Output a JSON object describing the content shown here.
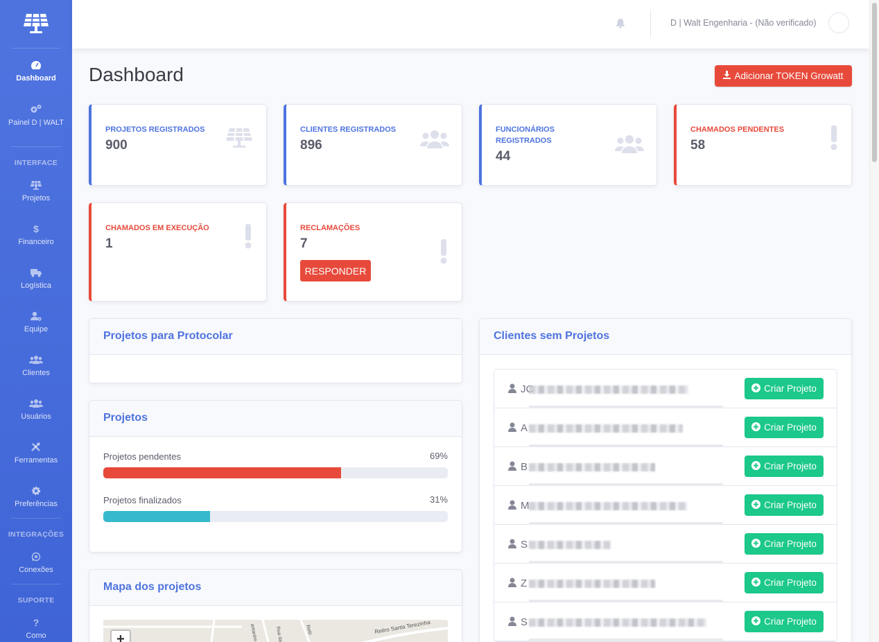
{
  "sidebar": {
    "items": [
      {
        "label": "Dashboard",
        "icon": "tachometer-icon"
      },
      {
        "label": "Painel D | WALT",
        "icon": "cogs-icon"
      },
      {
        "label": "Projetos",
        "icon": "solar-panel-icon"
      },
      {
        "label": "Financeiro",
        "icon": "dollar-icon"
      },
      {
        "label": "Logística",
        "icon": "truck-icon"
      },
      {
        "label": "Equipe",
        "icon": "user-cog-icon"
      },
      {
        "label": "Clientes",
        "icon": "users-icon"
      },
      {
        "label": "Usuários",
        "icon": "users-icon"
      },
      {
        "label": "Ferramentas",
        "icon": "tools-icon"
      },
      {
        "label": "Preferências",
        "icon": "gear-icon"
      },
      {
        "label": "Conexões",
        "icon": "whatsapp-icon"
      },
      {
        "label": "Como",
        "icon": "question-icon"
      }
    ],
    "headings": {
      "interface": "INTERFACE",
      "integracoes": "INTEGRAÇÕES",
      "suporte": "SUPORTE"
    }
  },
  "topbar": {
    "user_name": "D | Walt Engenharia - (Não verificado)"
  },
  "page": {
    "title": "Dashboard",
    "token_button": "Adicionar TOKEN Growatt"
  },
  "stats": [
    {
      "label": "PROJETOS REGISTRADOS",
      "value": "900"
    },
    {
      "label": "CLIENTES REGISTRADOS",
      "value": "896"
    },
    {
      "label": "FUNCIONÁRIOS REGISTRADOS",
      "value": "44"
    },
    {
      "label": "CHAMADOS PENDENTES",
      "value": "58"
    },
    {
      "label": "CHAMADOS EM EXECUÇÃO",
      "value": "1"
    },
    {
      "label": "RECLAMAÇÕES",
      "value": "7",
      "button": "RESPONDER"
    }
  ],
  "panels": {
    "protocolar_title": "Projetos para Protocolar",
    "projetos_title": "Projetos",
    "mapa_title": "Mapa dos projetos",
    "clientes_title": "Clientes sem Projetos"
  },
  "progress": [
    {
      "label": "Projetos pendentes",
      "percent_text": "69%",
      "percent": 69,
      "color": "#e74a3b"
    },
    {
      "label": "Projetos finalizados",
      "percent_text": "31%",
      "percent": 31,
      "color": "#36b9cc"
    }
  ],
  "map": {
    "zoom_in": "+",
    "street_labels": [
      "Retiro Santa Terezinha",
      "Rua da V",
      "antarém",
      "Retir"
    ]
  },
  "clients": [
    {
      "initial": "JC"
    },
    {
      "initial": "A"
    },
    {
      "initial": "B"
    },
    {
      "initial": "M"
    },
    {
      "initial": "S"
    },
    {
      "initial": "Z"
    },
    {
      "initial": "S"
    }
  ],
  "client_button": "Criar Projeto",
  "colors": {
    "primary": "#4e73df",
    "danger": "#e74a3b",
    "success": "#1cc88a",
    "info": "#36b9cc"
  }
}
